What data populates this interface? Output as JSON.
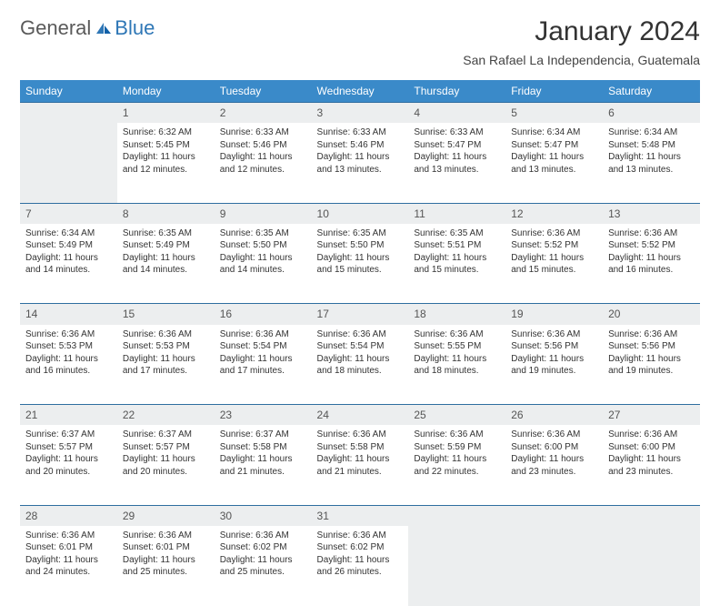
{
  "logo": {
    "part1": "General",
    "part2": "Blue"
  },
  "title": "January 2024",
  "location": "San Rafael La Independencia, Guatemala",
  "colors": {
    "header_bg": "#3a8ac9",
    "header_text": "#ffffff",
    "daynum_bg": "#eceeef",
    "row_border": "#2f6ea0",
    "text": "#333333",
    "logo_gray": "#5a5a5a",
    "logo_blue": "#2f77b6"
  },
  "typography": {
    "title_fontsize": 30,
    "location_fontsize": 14,
    "weekday_fontsize": 12,
    "daynum_fontsize": 12,
    "cell_fontsize": 10
  },
  "weekdays": [
    "Sunday",
    "Monday",
    "Tuesday",
    "Wednesday",
    "Thursday",
    "Friday",
    "Saturday"
  ],
  "weeks": [
    {
      "nums": [
        "",
        "1",
        "2",
        "3",
        "4",
        "5",
        "6"
      ],
      "cells": [
        {
          "sunrise": "",
          "sunset": "",
          "daylight1": "",
          "daylight2": ""
        },
        {
          "sunrise": "Sunrise: 6:32 AM",
          "sunset": "Sunset: 5:45 PM",
          "daylight1": "Daylight: 11 hours",
          "daylight2": "and 12 minutes."
        },
        {
          "sunrise": "Sunrise: 6:33 AM",
          "sunset": "Sunset: 5:46 PM",
          "daylight1": "Daylight: 11 hours",
          "daylight2": "and 12 minutes."
        },
        {
          "sunrise": "Sunrise: 6:33 AM",
          "sunset": "Sunset: 5:46 PM",
          "daylight1": "Daylight: 11 hours",
          "daylight2": "and 13 minutes."
        },
        {
          "sunrise": "Sunrise: 6:33 AM",
          "sunset": "Sunset: 5:47 PM",
          "daylight1": "Daylight: 11 hours",
          "daylight2": "and 13 minutes."
        },
        {
          "sunrise": "Sunrise: 6:34 AM",
          "sunset": "Sunset: 5:47 PM",
          "daylight1": "Daylight: 11 hours",
          "daylight2": "and 13 minutes."
        },
        {
          "sunrise": "Sunrise: 6:34 AM",
          "sunset": "Sunset: 5:48 PM",
          "daylight1": "Daylight: 11 hours",
          "daylight2": "and 13 minutes."
        }
      ]
    },
    {
      "nums": [
        "7",
        "8",
        "9",
        "10",
        "11",
        "12",
        "13"
      ],
      "cells": [
        {
          "sunrise": "Sunrise: 6:34 AM",
          "sunset": "Sunset: 5:49 PM",
          "daylight1": "Daylight: 11 hours",
          "daylight2": "and 14 minutes."
        },
        {
          "sunrise": "Sunrise: 6:35 AM",
          "sunset": "Sunset: 5:49 PM",
          "daylight1": "Daylight: 11 hours",
          "daylight2": "and 14 minutes."
        },
        {
          "sunrise": "Sunrise: 6:35 AM",
          "sunset": "Sunset: 5:50 PM",
          "daylight1": "Daylight: 11 hours",
          "daylight2": "and 14 minutes."
        },
        {
          "sunrise": "Sunrise: 6:35 AM",
          "sunset": "Sunset: 5:50 PM",
          "daylight1": "Daylight: 11 hours",
          "daylight2": "and 15 minutes."
        },
        {
          "sunrise": "Sunrise: 6:35 AM",
          "sunset": "Sunset: 5:51 PM",
          "daylight1": "Daylight: 11 hours",
          "daylight2": "and 15 minutes."
        },
        {
          "sunrise": "Sunrise: 6:36 AM",
          "sunset": "Sunset: 5:52 PM",
          "daylight1": "Daylight: 11 hours",
          "daylight2": "and 15 minutes."
        },
        {
          "sunrise": "Sunrise: 6:36 AM",
          "sunset": "Sunset: 5:52 PM",
          "daylight1": "Daylight: 11 hours",
          "daylight2": "and 16 minutes."
        }
      ]
    },
    {
      "nums": [
        "14",
        "15",
        "16",
        "17",
        "18",
        "19",
        "20"
      ],
      "cells": [
        {
          "sunrise": "Sunrise: 6:36 AM",
          "sunset": "Sunset: 5:53 PM",
          "daylight1": "Daylight: 11 hours",
          "daylight2": "and 16 minutes."
        },
        {
          "sunrise": "Sunrise: 6:36 AM",
          "sunset": "Sunset: 5:53 PM",
          "daylight1": "Daylight: 11 hours",
          "daylight2": "and 17 minutes."
        },
        {
          "sunrise": "Sunrise: 6:36 AM",
          "sunset": "Sunset: 5:54 PM",
          "daylight1": "Daylight: 11 hours",
          "daylight2": "and 17 minutes."
        },
        {
          "sunrise": "Sunrise: 6:36 AM",
          "sunset": "Sunset: 5:54 PM",
          "daylight1": "Daylight: 11 hours",
          "daylight2": "and 18 minutes."
        },
        {
          "sunrise": "Sunrise: 6:36 AM",
          "sunset": "Sunset: 5:55 PM",
          "daylight1": "Daylight: 11 hours",
          "daylight2": "and 18 minutes."
        },
        {
          "sunrise": "Sunrise: 6:36 AM",
          "sunset": "Sunset: 5:56 PM",
          "daylight1": "Daylight: 11 hours",
          "daylight2": "and 19 minutes."
        },
        {
          "sunrise": "Sunrise: 6:36 AM",
          "sunset": "Sunset: 5:56 PM",
          "daylight1": "Daylight: 11 hours",
          "daylight2": "and 19 minutes."
        }
      ]
    },
    {
      "nums": [
        "21",
        "22",
        "23",
        "24",
        "25",
        "26",
        "27"
      ],
      "cells": [
        {
          "sunrise": "Sunrise: 6:37 AM",
          "sunset": "Sunset: 5:57 PM",
          "daylight1": "Daylight: 11 hours",
          "daylight2": "and 20 minutes."
        },
        {
          "sunrise": "Sunrise: 6:37 AM",
          "sunset": "Sunset: 5:57 PM",
          "daylight1": "Daylight: 11 hours",
          "daylight2": "and 20 minutes."
        },
        {
          "sunrise": "Sunrise: 6:37 AM",
          "sunset": "Sunset: 5:58 PM",
          "daylight1": "Daylight: 11 hours",
          "daylight2": "and 21 minutes."
        },
        {
          "sunrise": "Sunrise: 6:36 AM",
          "sunset": "Sunset: 5:58 PM",
          "daylight1": "Daylight: 11 hours",
          "daylight2": "and 21 minutes."
        },
        {
          "sunrise": "Sunrise: 6:36 AM",
          "sunset": "Sunset: 5:59 PM",
          "daylight1": "Daylight: 11 hours",
          "daylight2": "and 22 minutes."
        },
        {
          "sunrise": "Sunrise: 6:36 AM",
          "sunset": "Sunset: 6:00 PM",
          "daylight1": "Daylight: 11 hours",
          "daylight2": "and 23 minutes."
        },
        {
          "sunrise": "Sunrise: 6:36 AM",
          "sunset": "Sunset: 6:00 PM",
          "daylight1": "Daylight: 11 hours",
          "daylight2": "and 23 minutes."
        }
      ]
    },
    {
      "nums": [
        "28",
        "29",
        "30",
        "31",
        "",
        "",
        ""
      ],
      "cells": [
        {
          "sunrise": "Sunrise: 6:36 AM",
          "sunset": "Sunset: 6:01 PM",
          "daylight1": "Daylight: 11 hours",
          "daylight2": "and 24 minutes."
        },
        {
          "sunrise": "Sunrise: 6:36 AM",
          "sunset": "Sunset: 6:01 PM",
          "daylight1": "Daylight: 11 hours",
          "daylight2": "and 25 minutes."
        },
        {
          "sunrise": "Sunrise: 6:36 AM",
          "sunset": "Sunset: 6:02 PM",
          "daylight1": "Daylight: 11 hours",
          "daylight2": "and 25 minutes."
        },
        {
          "sunrise": "Sunrise: 6:36 AM",
          "sunset": "Sunset: 6:02 PM",
          "daylight1": "Daylight: 11 hours",
          "daylight2": "and 26 minutes."
        },
        {
          "sunrise": "",
          "sunset": "",
          "daylight1": "",
          "daylight2": ""
        },
        {
          "sunrise": "",
          "sunset": "",
          "daylight1": "",
          "daylight2": ""
        },
        {
          "sunrise": "",
          "sunset": "",
          "daylight1": "",
          "daylight2": ""
        }
      ]
    }
  ]
}
